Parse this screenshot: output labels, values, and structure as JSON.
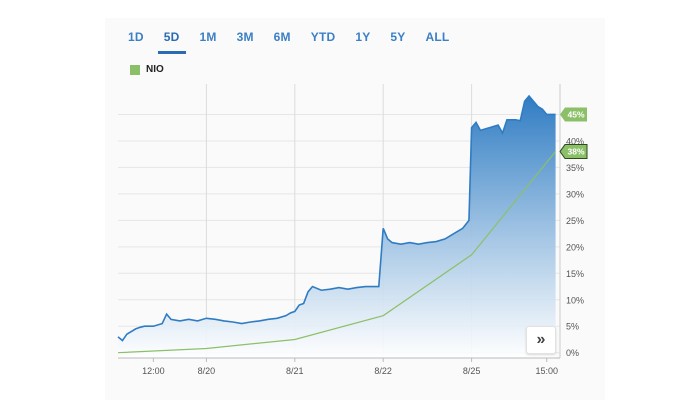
{
  "tabs": [
    {
      "label": "1D",
      "active": false
    },
    {
      "label": "5D",
      "active": true
    },
    {
      "label": "1M",
      "active": false
    },
    {
      "label": "3M",
      "active": false
    },
    {
      "label": "6M",
      "active": false
    },
    {
      "label": "YTD",
      "active": false
    },
    {
      "label": "1Y",
      "active": false
    },
    {
      "label": "5Y",
      "active": false
    },
    {
      "label": "ALL",
      "active": false
    }
  ],
  "legend": {
    "label": "NIO",
    "color": "#8cc068"
  },
  "nav_button": {
    "icon": "double-chevron-right-icon",
    "glyph": "»"
  },
  "colors": {
    "primary_line": "#2f7cc3",
    "comparison_line": "#8cc068",
    "area_top": "#2f7cc3",
    "area_bottom": "#ffffff"
  },
  "chart_data": {
    "type": "area",
    "y_unit": "%",
    "ylim": [
      -1,
      50
    ],
    "y_ticks": [
      "0%",
      "5%",
      "10%",
      "15%",
      "20%",
      "25%",
      "30%",
      "35%",
      "40%",
      "45%"
    ],
    "y_tick_values": [
      0,
      5,
      10,
      15,
      20,
      25,
      30,
      35,
      40,
      45
    ],
    "x_ticks": [
      {
        "label": "12:00",
        "x": 0.4
      },
      {
        "label": "8/20",
        "x": 1.0
      },
      {
        "label": "8/21",
        "x": 2.0
      },
      {
        "label": "8/22",
        "x": 3.0
      },
      {
        "label": "8/25",
        "x": 4.0
      },
      {
        "label": "15:00",
        "x": 4.85
      }
    ],
    "x_gridlines": [
      1,
      2,
      3,
      4
    ],
    "xlim": [
      0,
      5
    ],
    "grid": true,
    "series": [
      {
        "name": "main",
        "badge": "45%",
        "points": [
          [
            0.0,
            3.0
          ],
          [
            0.05,
            2.3
          ],
          [
            0.1,
            3.5
          ],
          [
            0.15,
            4.0
          ],
          [
            0.2,
            4.5
          ],
          [
            0.25,
            4.8
          ],
          [
            0.3,
            5.0
          ],
          [
            0.4,
            5.0
          ],
          [
            0.5,
            5.5
          ],
          [
            0.55,
            7.3
          ],
          [
            0.6,
            6.3
          ],
          [
            0.7,
            6.0
          ],
          [
            0.8,
            6.3
          ],
          [
            0.9,
            6.0
          ],
          [
            1.0,
            6.5
          ],
          [
            1.1,
            6.3
          ],
          [
            1.2,
            6.0
          ],
          [
            1.3,
            5.8
          ],
          [
            1.4,
            5.5
          ],
          [
            1.5,
            5.8
          ],
          [
            1.6,
            6.0
          ],
          [
            1.7,
            6.3
          ],
          [
            1.8,
            6.5
          ],
          [
            1.9,
            7.0
          ],
          [
            1.95,
            7.5
          ],
          [
            2.0,
            7.8
          ],
          [
            2.05,
            9.0
          ],
          [
            2.1,
            9.3
          ],
          [
            2.15,
            11.5
          ],
          [
            2.2,
            12.5
          ],
          [
            2.3,
            11.8
          ],
          [
            2.4,
            12.0
          ],
          [
            2.5,
            12.3
          ],
          [
            2.6,
            12.0
          ],
          [
            2.7,
            12.3
          ],
          [
            2.8,
            12.5
          ],
          [
            2.95,
            12.5
          ],
          [
            3.0,
            23.5
          ],
          [
            3.05,
            21.5
          ],
          [
            3.1,
            20.8
          ],
          [
            3.2,
            20.5
          ],
          [
            3.3,
            20.8
          ],
          [
            3.4,
            20.5
          ],
          [
            3.5,
            20.8
          ],
          [
            3.6,
            21.0
          ],
          [
            3.7,
            21.5
          ],
          [
            3.8,
            22.5
          ],
          [
            3.9,
            23.5
          ],
          [
            3.97,
            25.0
          ],
          [
            4.0,
            42.5
          ],
          [
            4.05,
            43.5
          ],
          [
            4.1,
            42.0
          ],
          [
            4.2,
            42.5
          ],
          [
            4.3,
            43.0
          ],
          [
            4.35,
            41.5
          ],
          [
            4.4,
            44.0
          ],
          [
            4.5,
            44.0
          ],
          [
            4.55,
            43.8
          ],
          [
            4.6,
            47.5
          ],
          [
            4.65,
            48.5
          ],
          [
            4.7,
            47.5
          ],
          [
            4.75,
            46.5
          ],
          [
            4.8,
            46.0
          ],
          [
            4.85,
            45.0
          ],
          [
            4.95,
            45.0
          ]
        ]
      },
      {
        "name": "NIO",
        "badge": "38%",
        "points": [
          [
            0.0,
            0.0
          ],
          [
            1.0,
            0.8
          ],
          [
            2.0,
            2.5
          ],
          [
            3.0,
            7.0
          ],
          [
            4.0,
            18.5
          ],
          [
            4.95,
            38.0
          ]
        ]
      }
    ]
  }
}
